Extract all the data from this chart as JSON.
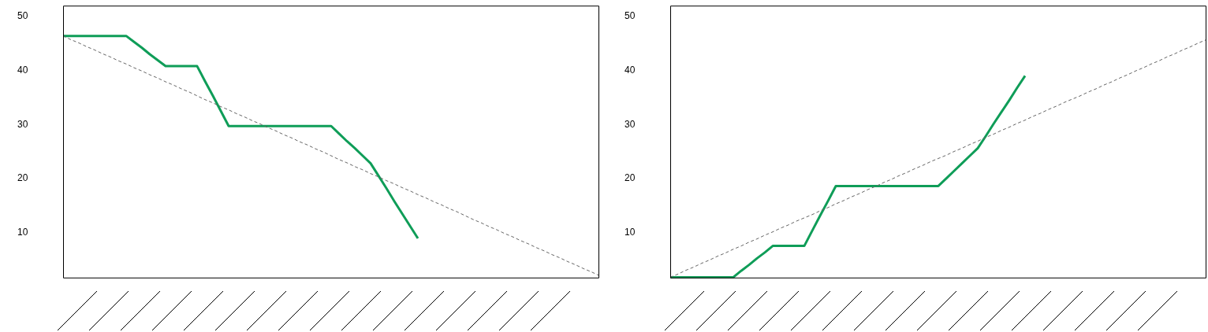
{
  "chart_data": [
    {
      "type": "line",
      "categories": [
        null,
        null,
        null,
        null,
        null,
        null,
        null,
        null,
        null,
        null,
        null,
        null,
        null,
        null,
        null,
        null,
        null,
        null,
        null,
        null,
        null,
        null,
        null,
        null,
        null,
        null,
        null,
        null,
        null,
        null,
        null,
        null,
        null,
        null,
        null,
        null,
        null,
        null,
        null,
        null,
        null,
        null,
        null,
        null,
        null,
        null,
        null,
        null,
        null,
        null,
        null,
        null,
        null,
        null,
        null,
        null,
        null,
        null,
        null,
        null,
        null,
        null,
        null,
        null,
        null,
        null,
        null,
        null,
        null
      ],
      "series": [
        {
          "color": "#666666",
          "line_style": "dashed",
          "values": [
            46.4,
            45.7,
            45.1,
            44.4,
            43.8,
            43.1,
            42.5,
            41.8,
            41.2,
            40.5,
            39.9,
            39.2,
            38.6,
            37.9,
            37.3,
            36.6,
            36.0,
            35.3,
            34.6,
            34.0,
            33.3,
            32.7,
            32.0,
            31.4,
            30.7,
            30.1,
            29.4,
            28.8,
            28.1,
            27.5,
            26.8,
            26.2,
            25.5,
            24.9,
            24.2,
            23.5,
            22.9,
            22.2,
            21.6,
            20.9,
            20.3,
            19.6,
            19.0,
            18.3,
            17.7,
            17.0,
            16.4,
            15.7,
            15.1,
            14.4,
            13.8,
            13.1,
            12.4,
            11.8,
            11.1,
            10.5,
            9.8,
            9.2,
            8.5,
            7.9,
            7.2,
            6.6,
            5.9,
            5.3,
            4.6,
            4.0,
            3.3,
            2.7,
            2.0
          ]
        },
        {
          "color": "#0f9d58",
          "line_style": "solid",
          "values": [
            46.4,
            46.4,
            46.4,
            46.4,
            46.4,
            46.4,
            46.4,
            46.4,
            46.4,
            45.3,
            44.2,
            43.0,
            41.9,
            40.8,
            40.8,
            40.8,
            40.8,
            40.8,
            38.0,
            35.3,
            32.5,
            29.7,
            29.7,
            29.7,
            29.7,
            29.7,
            29.7,
            29.7,
            29.7,
            29.7,
            29.7,
            29.7,
            29.7,
            29.7,
            29.7,
            28.3,
            26.9,
            25.6,
            24.2,
            22.8,
            20.5,
            18.2,
            15.8,
            13.5,
            11.2,
            8.9,
            null,
            null,
            null,
            null,
            null,
            null,
            null,
            null,
            null,
            null,
            null,
            null,
            null,
            null,
            null,
            null,
            null,
            null,
            null,
            null,
            null,
            null,
            null
          ]
        }
      ],
      "ylim": [
        1.5,
        52
      ],
      "yticks": [
        10,
        20,
        30,
        40,
        50
      ],
      "grid": false,
      "legend": false,
      "marker": "none",
      "tick_labels": "y"
    },
    {
      "type": "line",
      "categories": [
        null,
        null,
        null,
        null,
        null,
        null,
        null,
        null,
        null,
        null,
        null,
        null,
        null,
        null,
        null,
        null,
        null,
        null,
        null,
        null,
        null,
        null,
        null,
        null,
        null,
        null,
        null,
        null,
        null,
        null,
        null,
        null,
        null,
        null,
        null,
        null,
        null,
        null,
        null,
        null,
        null,
        null,
        null,
        null,
        null,
        null,
        null,
        null,
        null,
        null,
        null,
        null,
        null,
        null,
        null,
        null,
        null,
        null,
        null,
        null,
        null,
        null,
        null,
        null,
        null,
        null,
        null,
        null,
        null
      ],
      "series": [
        {
          "color": "#666666",
          "line_style": "dashed",
          "values": [
            1.7,
            2.3,
            3.0,
            3.6,
            4.3,
            4.9,
            5.6,
            6.2,
            6.9,
            7.5,
            8.2,
            8.8,
            9.5,
            10.1,
            10.8,
            11.4,
            12.1,
            12.7,
            13.3,
            14.0,
            14.6,
            15.3,
            15.9,
            16.6,
            17.2,
            17.9,
            18.5,
            19.2,
            19.8,
            20.5,
            21.1,
            21.8,
            22.4,
            23.1,
            23.7,
            24.3,
            25.0,
            25.6,
            26.3,
            26.9,
            27.6,
            28.2,
            28.9,
            29.5,
            30.2,
            30.8,
            31.5,
            32.1,
            32.8,
            33.4,
            34.1,
            34.7,
            35.3,
            36.0,
            36.6,
            37.3,
            37.9,
            38.6,
            39.2,
            39.9,
            40.5,
            41.2,
            41.8,
            42.5,
            43.1,
            43.8,
            44.4,
            45.1,
            45.7
          ]
        },
        {
          "color": "#0f9d58",
          "line_style": "solid",
          "values": [
            1.7,
            1.7,
            1.7,
            1.7,
            1.7,
            1.7,
            1.7,
            1.7,
            1.7,
            2.9,
            4.0,
            5.2,
            6.3,
            7.5,
            7.5,
            7.5,
            7.5,
            7.5,
            10.3,
            13.1,
            15.8,
            18.6,
            18.6,
            18.6,
            18.6,
            18.6,
            18.6,
            18.6,
            18.6,
            18.6,
            18.6,
            18.6,
            18.6,
            18.6,
            18.6,
            20.0,
            21.4,
            22.8,
            24.2,
            25.6,
            27.8,
            30.1,
            32.3,
            34.5,
            36.8,
            39.0,
            null,
            null,
            null,
            null,
            null,
            null,
            null,
            null,
            null,
            null,
            null,
            null,
            null,
            null,
            null,
            null,
            null,
            null,
            null,
            null,
            null,
            null,
            null
          ]
        }
      ],
      "ylim": [
        1.5,
        52
      ],
      "yticks": [
        10,
        20,
        30,
        40,
        50
      ],
      "grid": false,
      "legend": false,
      "marker": "none",
      "tick_labels": "y"
    }
  ]
}
